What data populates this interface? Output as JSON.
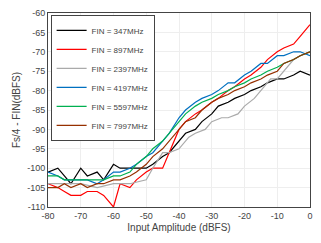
{
  "chart_data": {
    "type": "line",
    "xlabel": "Input Amplitude (dBFS)",
    "ylabel": "Fs/4 - FIN(dBFS)",
    "xlim": [
      -80,
      0
    ],
    "ylim": [
      -110,
      -60
    ],
    "xticks": [
      -80,
      -70,
      -60,
      -50,
      -40,
      -30,
      -20,
      -10,
      0
    ],
    "yticks": [
      -110,
      -105,
      -100,
      -95,
      -90,
      -85,
      -80,
      -75,
      -70,
      -65,
      -60
    ],
    "grid": true,
    "legend": "upper left",
    "series": [
      {
        "name": "FIN = 347MHz",
        "color": "#000000",
        "x": [
          -80,
          -77,
          -75,
          -73,
          -70,
          -68,
          -65,
          -63,
          -60,
          -58,
          -55,
          -53,
          -50,
          -48,
          -45,
          -43,
          -40,
          -38,
          -35,
          -33,
          -30,
          -28,
          -25,
          -23,
          -20,
          -18,
          -15,
          -13,
          -10,
          -8,
          -5,
          -3,
          0
        ],
        "values": [
          -101,
          -100,
          -102,
          -104,
          -100,
          -102,
          -101,
          -103,
          -99,
          -100,
          -100,
          -100,
          -100,
          -99,
          -97,
          -96,
          -93,
          -91,
          -90,
          -88,
          -86,
          -84,
          -83,
          -82,
          -81,
          -80,
          -79,
          -78,
          -77,
          -77,
          -76,
          -75,
          -76
        ]
      },
      {
        "name": "FIN = 897MHz",
        "color": "#ff0000",
        "x": [
          -80,
          -77,
          -75,
          -73,
          -70,
          -68,
          -65,
          -63,
          -60,
          -58,
          -55,
          -53,
          -50,
          -48,
          -45,
          -43,
          -40,
          -38,
          -35,
          -33,
          -30,
          -28,
          -25,
          -23,
          -20,
          -18,
          -15,
          -13,
          -10,
          -8,
          -5,
          -3,
          0
        ],
        "values": [
          -104,
          -105,
          -106,
          -107,
          -107,
          -106,
          -106,
          -107,
          -110,
          -104,
          -105,
          -103,
          -101,
          -100,
          -100,
          -96,
          -90,
          -88,
          -86,
          -85,
          -83,
          -82,
          -80,
          -79,
          -77,
          -76,
          -74,
          -72,
          -70,
          -69,
          -68,
          -66,
          -63
        ]
      },
      {
        "name": "FIN = 2397MHz",
        "color": "#aaaaaa",
        "x": [
          -80,
          -75,
          -70,
          -65,
          -60,
          -55,
          -50,
          -48,
          -45,
          -43,
          -40,
          -37,
          -35,
          -32,
          -30,
          -27,
          -25,
          -22,
          -20,
          -17,
          -15,
          -12,
          -10,
          -7,
          -5,
          -3,
          0
        ],
        "values": [
          -104,
          -104,
          -104,
          -105,
          -104,
          -104,
          -103,
          -100,
          -96,
          -96,
          -95,
          -92,
          -91,
          -90,
          -88,
          -87,
          -87,
          -86,
          -84,
          -82,
          -80,
          -77,
          -77,
          -74,
          -72,
          -71,
          -70
        ]
      },
      {
        "name": "FIN = 4197MHz",
        "color": "#0070c0",
        "x": [
          -80,
          -77,
          -75,
          -73,
          -70,
          -68,
          -65,
          -63,
          -60,
          -58,
          -55,
          -53,
          -50,
          -48,
          -45,
          -43,
          -40,
          -38,
          -35,
          -33,
          -30,
          -28,
          -25,
          -23,
          -20,
          -18,
          -15,
          -13,
          -10,
          -8,
          -5,
          -3,
          0
        ],
        "values": [
          -101,
          -102,
          -103,
          -103,
          -103,
          -103,
          -104,
          -103,
          -101,
          -101,
          -100,
          -99,
          -97,
          -96,
          -93,
          -91,
          -87,
          -85,
          -83,
          -82,
          -81,
          -80,
          -78,
          -78,
          -76,
          -75,
          -73,
          -73,
          -71,
          -71,
          -70,
          -70,
          -71
        ]
      },
      {
        "name": "FIN = 5597MHz",
        "color": "#00b050",
        "x": [
          -80,
          -77,
          -75,
          -73,
          -70,
          -68,
          -65,
          -63,
          -60,
          -58,
          -55,
          -53,
          -50,
          -48,
          -45,
          -43,
          -40,
          -38,
          -35,
          -33,
          -30,
          -28,
          -25,
          -23,
          -20,
          -18,
          -15,
          -13,
          -10,
          -8,
          -5,
          -3,
          0
        ],
        "values": [
          -102,
          -102,
          -103,
          -103,
          -103,
          -103,
          -103,
          -103,
          -102,
          -102,
          -101,
          -99,
          -97,
          -95,
          -93,
          -91,
          -88,
          -86,
          -84,
          -83,
          -82,
          -81,
          -80,
          -79,
          -78,
          -77,
          -76,
          -75,
          -74,
          -73,
          -72,
          -71,
          -70
        ]
      },
      {
        "name": "FIN = 7997MHz",
        "color": "#963000",
        "x": [
          -80,
          -77,
          -75,
          -73,
          -70,
          -68,
          -65,
          -63,
          -60,
          -58,
          -55,
          -53,
          -50,
          -48,
          -45,
          -43,
          -40,
          -38,
          -35,
          -33,
          -30,
          -28,
          -25,
          -23,
          -20,
          -18,
          -15,
          -13,
          -10,
          -8,
          -5,
          -3,
          0
        ],
        "values": [
          -105,
          -105,
          -104,
          -105,
          -104,
          -105,
          -104,
          -104,
          -103,
          -103,
          -102,
          -101,
          -99,
          -97,
          -95,
          -93,
          -90,
          -88,
          -87,
          -85,
          -83,
          -82,
          -81,
          -80,
          -79,
          -78,
          -77,
          -76,
          -75,
          -73,
          -72,
          -71,
          -70
        ]
      }
    ]
  }
}
